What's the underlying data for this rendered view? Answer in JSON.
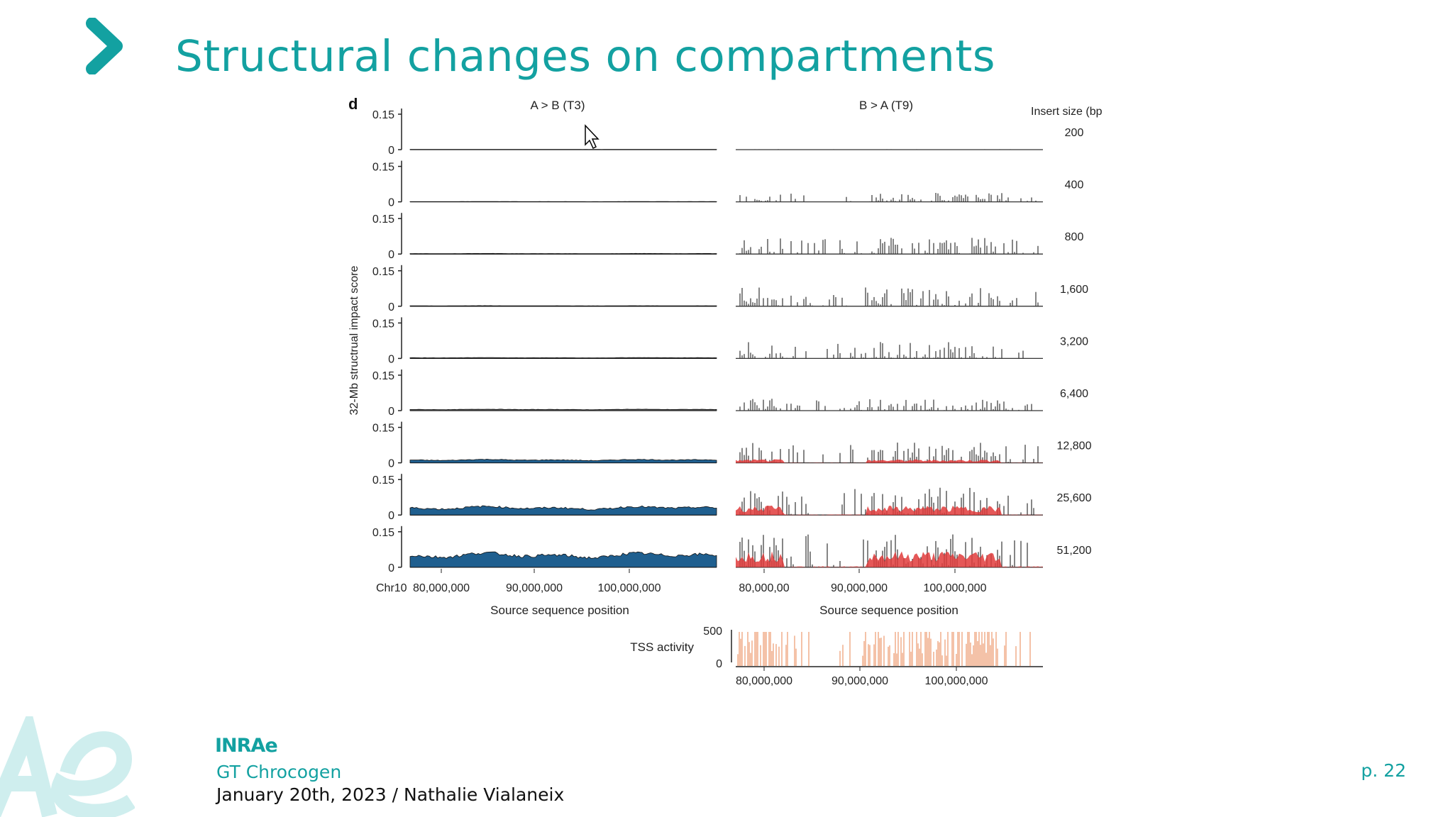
{
  "slide": {
    "title": "Structural changes on compartments",
    "page": "p. 22",
    "footer": {
      "logo_text": "INRAe",
      "org": "GT Chrocogen",
      "date_author": "January 20th, 2023 / Nathalie Vialaneix"
    }
  },
  "colors": {
    "accent": "#13a1a1",
    "blue_area": "#1f5f8f",
    "red_area": "#e03b3b",
    "tss": "#e8804a"
  },
  "icons": {
    "chevron": "chevron-right-icon",
    "cursor": "mouse-pointer-icon"
  },
  "chart_data": {
    "type": "area",
    "panel_label": "d",
    "left_title": "A > B (T3)",
    "right_title": "B > A (T9)",
    "insert_header": "Insert size (bp",
    "ylabel": "32-Mb structrual impact score",
    "ytick_top": "0.15",
    "ytick_bottom": "0",
    "ylim": [
      0,
      0.15
    ],
    "insert_sizes": [
      "200",
      "400",
      "800",
      "1,600",
      "3,200",
      "6,400",
      "12,800",
      "25,600",
      "51,200"
    ],
    "left_xticks": [
      "Chr10",
      "80,000,000",
      "90,000,000",
      "100,000,000"
    ],
    "right_xticks": [
      "80,000,00",
      "90,000,000",
      "100,000,000"
    ],
    "xlabel": "Source sequence position",
    "left_levels": [
      0.001,
      0.001,
      0.002,
      0.002,
      0.003,
      0.005,
      0.012,
      0.03,
      0.05
    ],
    "right_levels": [
      0.002,
      0.04,
      0.07,
      0.08,
      0.07,
      0.05,
      0.09,
      0.12,
      0.14
    ],
    "tss": {
      "label": "TSS activity",
      "yticks": [
        "500",
        "0"
      ],
      "ylim": [
        0,
        500
      ],
      "xticks": [
        "80,000,000",
        "90,000,000",
        "100,000,000"
      ]
    }
  }
}
